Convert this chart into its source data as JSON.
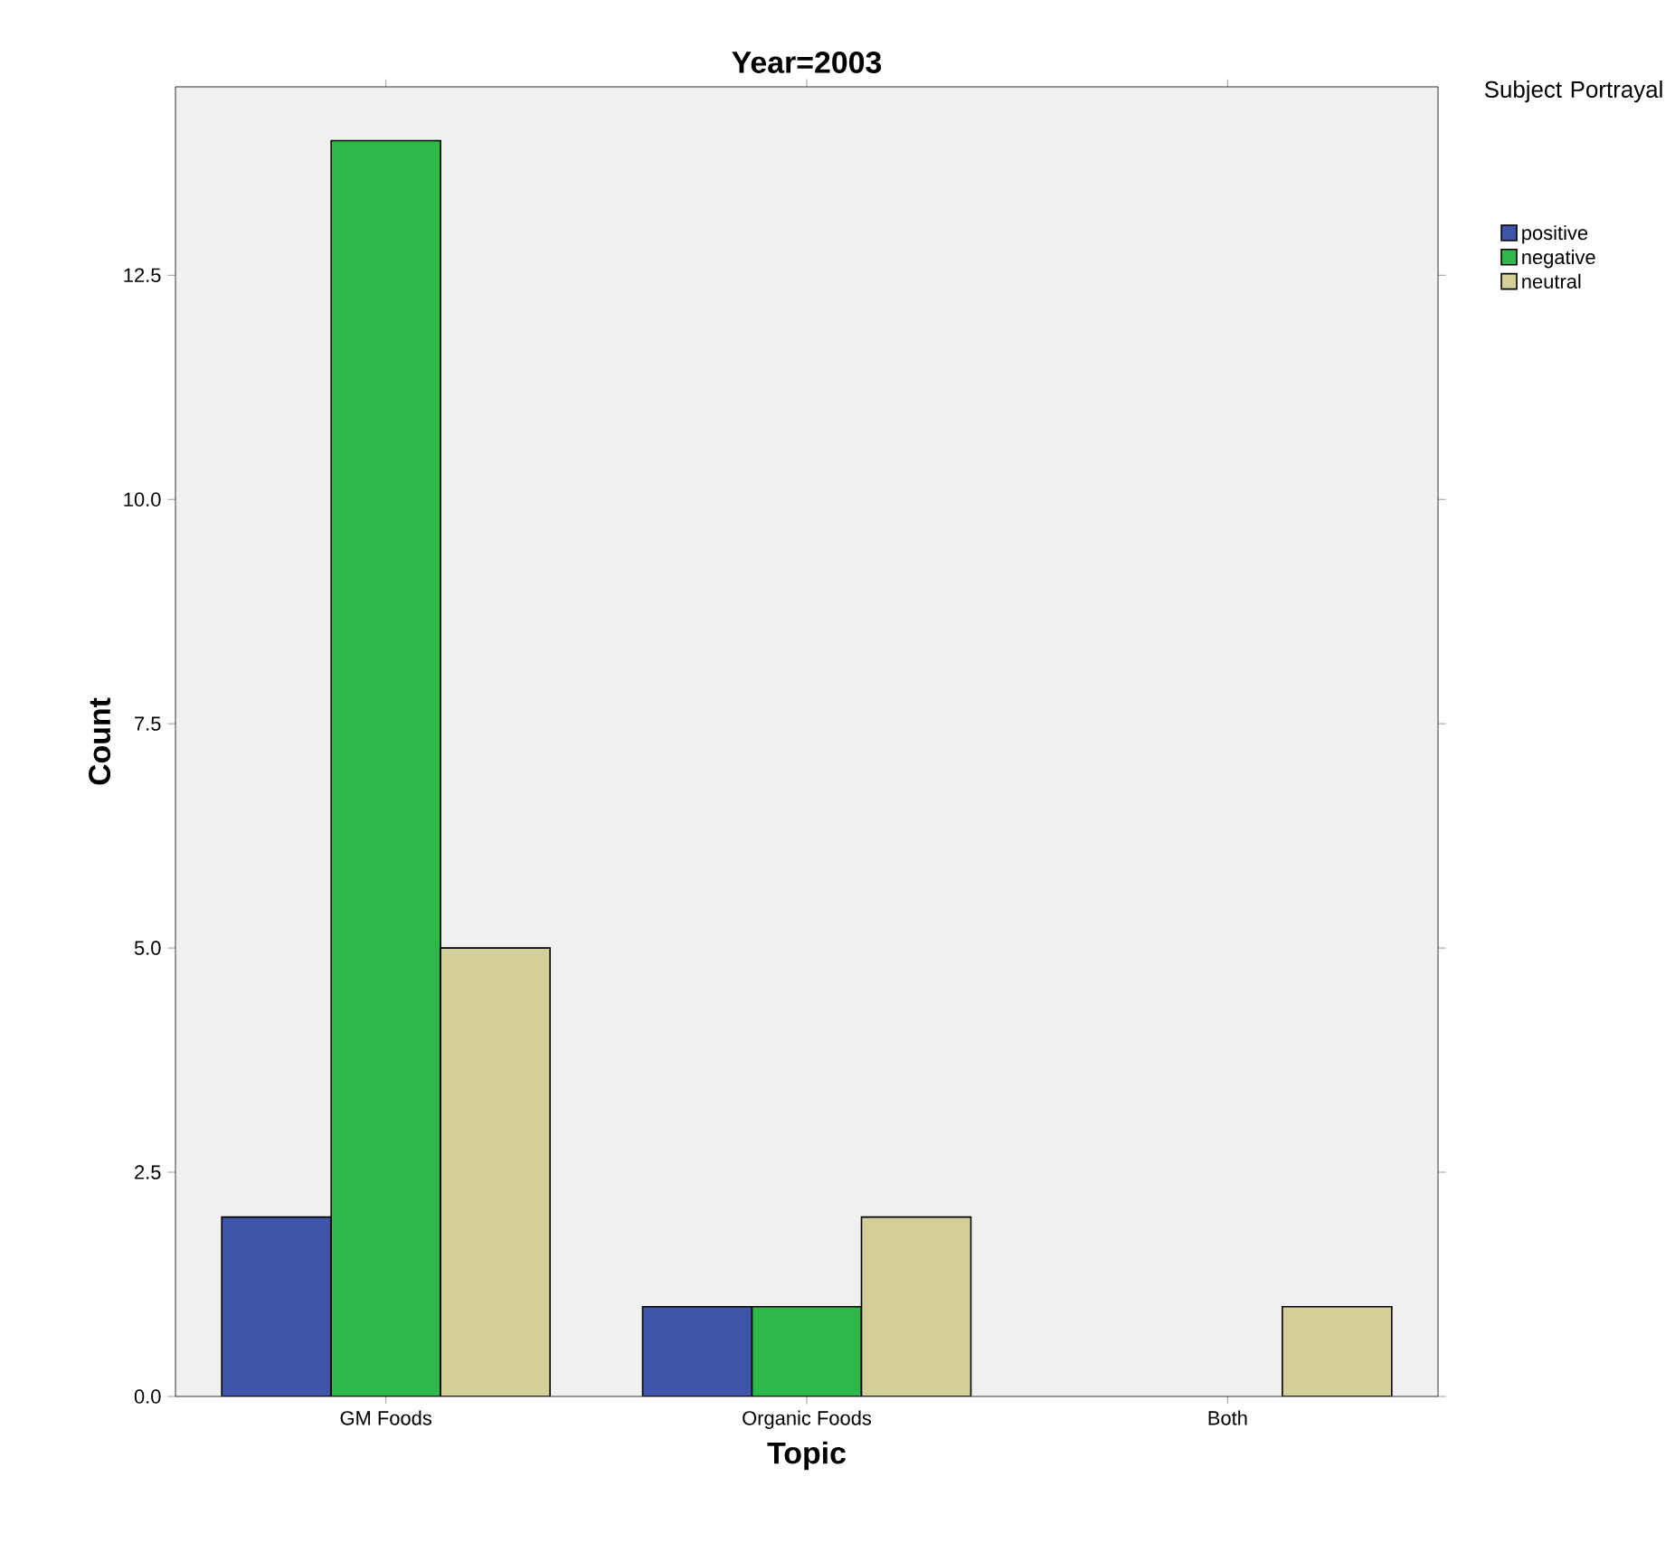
{
  "chart_data": {
    "type": "bar",
    "title": "Year=2003",
    "xlabel": "Topic",
    "ylabel": "Count",
    "legend_title": "Subject Portrayal",
    "categories": [
      "GM Foods",
      "Organic Foods",
      "Both"
    ],
    "series": [
      {
        "name": "positive",
        "color": "#3f55a8",
        "values": [
          2,
          1,
          null
        ]
      },
      {
        "name": "negative",
        "color": "#2fb84a",
        "values": [
          14,
          1,
          null
        ]
      },
      {
        "name": "neutral",
        "color": "#d4cf98",
        "values": [
          5,
          2,
          1
        ]
      }
    ],
    "ylim": [
      0,
      14.6
    ],
    "yticks": [
      {
        "value": 0,
        "label": "0.0"
      },
      {
        "value": 2.5,
        "label": "2.5"
      },
      {
        "value": 5,
        "label": "5.0"
      },
      {
        "value": 7.5,
        "label": "7.5"
      },
      {
        "value": 10,
        "label": "10.0"
      },
      {
        "value": 12.5,
        "label": "12.5"
      }
    ],
    "grid": false,
    "legend": "top right"
  }
}
